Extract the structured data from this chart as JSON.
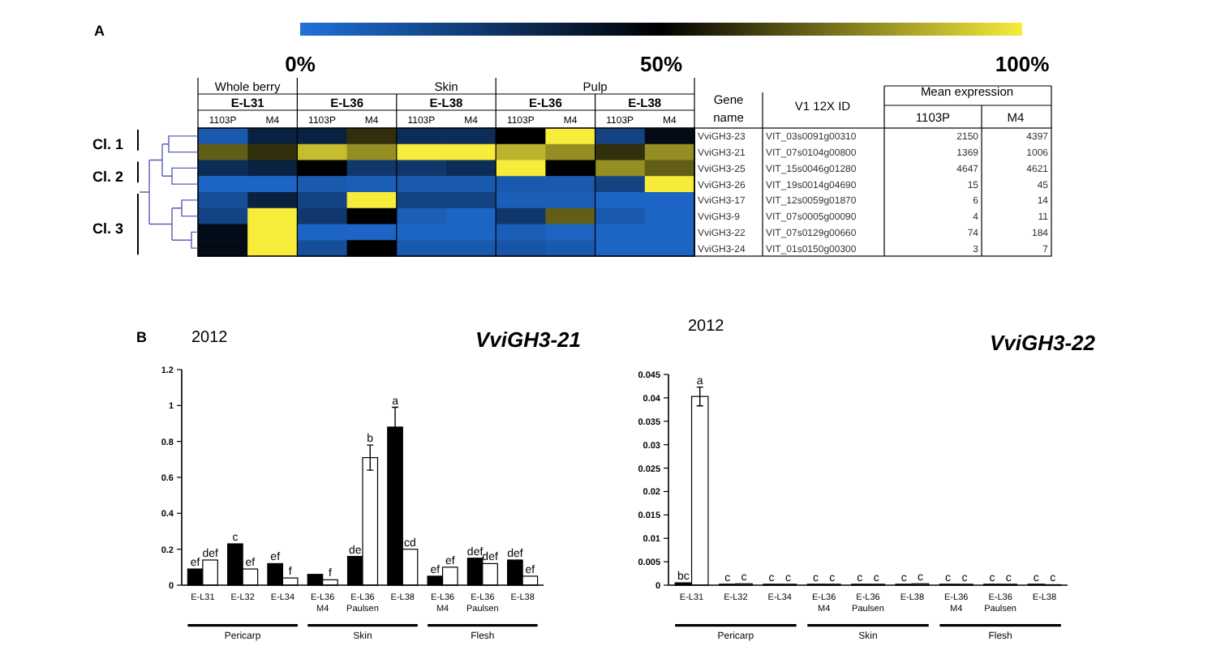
{
  "chart_data": [
    {
      "type": "heatmap",
      "categories": [
        "1103P",
        "M4",
        "1103P",
        "M4",
        "1103P",
        "M4",
        "1103P",
        "M4",
        "1103P",
        "M4"
      ],
      "y_categories": [
        null,
        null,
        null,
        null,
        null,
        null,
        null,
        null
      ],
      "y2_categories": [
        "VviGH3-23",
        "VviGH3-21",
        "VviGH3-25",
        "VviGH3-26",
        "VviGH3-17",
        "VviGH3-9",
        "VviGH3-22",
        "VviGH3-24"
      ],
      "cells": [
        [
          10,
          35,
          35,
          60,
          30,
          30,
          50,
          100,
          20,
          45
        ],
        [
          70,
          60,
          90,
          80,
          100,
          100,
          88,
          80,
          60,
          80
        ],
        [
          30,
          35,
          50,
          25,
          25,
          30,
          100,
          50,
          80,
          70
        ],
        [
          5,
          5,
          10,
          8,
          10,
          10,
          10,
          10,
          20,
          100
        ],
        [
          15,
          35,
          20,
          100,
          20,
          20,
          8,
          8,
          5,
          5
        ],
        [
          20,
          100,
          25,
          50,
          8,
          5,
          25,
          70,
          10,
          5
        ],
        [
          45,
          100,
          5,
          5,
          5,
          5,
          8,
          5,
          5,
          5
        ],
        [
          45,
          100,
          15,
          50,
          10,
          10,
          12,
          10,
          5,
          5
        ]
      ],
      "clim": [
        0,
        100
      ],
      "cticks": [
        {
          "value": 0,
          "label": "0%"
        },
        {
          "value": 50,
          "label": "50%"
        },
        {
          "value": 100,
          "label": "100%"
        }
      ],
      "annotations": [
        "A",
        "Whole berry",
        "Skin",
        "Pulp",
        "E-L31",
        "E-L36",
        "E-L38",
        "E-L36",
        "E-L38",
        "Cl. 1",
        "Cl. 2",
        "Cl. 3"
      ]
    },
    {
      "type": "other",
      "annotations": [
        "Gene name",
        "V1 12X ID",
        "Mean expression",
        "1103P",
        "M4"
      ],
      "cell_labels": [
        [
          "VIT_03s0091g00310",
          "2150",
          "4397"
        ],
        [
          "VIT_07s0104g00800",
          "1369",
          "1006"
        ],
        [
          "VIT_15s0046g01280",
          "4647",
          "4621"
        ],
        [
          "VIT_19s0014g04690",
          "15",
          "45"
        ],
        [
          "VIT_12s0059g01870",
          "6",
          "14"
        ],
        [
          "VIT_07s0005g00090",
          "4",
          "11"
        ],
        [
          "VIT_07s0129g00660",
          "74",
          "184"
        ],
        [
          "VIT_01s0150g00300",
          "3",
          "7"
        ]
      ]
    },
    {
      "type": "bar",
      "title": "VviGH3-21",
      "subtitle": "2012",
      "categories": [
        "E-L31",
        "E-L32",
        "E-L34",
        "E-L36\nM4",
        "E-L36\nPaulsen",
        "E-L38",
        "E-L36\nM4",
        "E-L36\nPaulsen",
        "E-L38"
      ],
      "series": [
        {
          "color": "#000000",
          "values": [
            0.09,
            0.23,
            0.12,
            0.06,
            0.16,
            0.88,
            0.05,
            0.15,
            0.14
          ],
          "errors": [
            null,
            null,
            null,
            null,
            null,
            0.11,
            null,
            null,
            null
          ],
          "value_labels": [
            "ef",
            "c",
            "ef",
            null,
            "de",
            "a",
            "ef",
            "def",
            "def"
          ]
        },
        {
          "color": "#ffffff",
          "values": [
            0.14,
            0.09,
            0.04,
            0.03,
            0.71,
            0.2,
            0.1,
            0.12,
            0.05
          ],
          "errors": [
            null,
            null,
            null,
            null,
            0.07,
            null,
            null,
            null,
            null
          ],
          "value_labels": [
            "def",
            "ef",
            "f",
            "f",
            "b",
            "cd",
            "ef",
            "def",
            "ef"
          ]
        }
      ],
      "ylim": [
        0,
        1.2
      ],
      "yticks": [
        0,
        0.2,
        0.4,
        0.6,
        0.8,
        1,
        1.2
      ],
      "annotations": [
        "B",
        "Pericarp",
        "Skin",
        "Flesh"
      ]
    },
    {
      "type": "bar",
      "title": "VviGH3-22",
      "subtitle": "2012",
      "categories": [
        "E-L31",
        "E-L32",
        "E-L34",
        "E-L36\nM4",
        "E-L36\nPaulsen",
        "E-L38",
        "E-L36\nM4",
        "E-L36\nPaulsen",
        "E-L38"
      ],
      "series": [
        {
          "color": "#000000",
          "values": [
            0.0005,
            0.0002,
            0.0002,
            0.0002,
            0.0002,
            0.0002,
            0.0002,
            0.0002,
            0.0002
          ],
          "value_labels": [
            "bc",
            "c",
            "c",
            "c",
            "c",
            "c",
            "c",
            "c",
            "c"
          ]
        },
        {
          "color": "#ffffff",
          "values": [
            0.0403,
            0.0003,
            0.0002,
            0.0002,
            0.0002,
            0.0003,
            0.0002,
            0.0002,
            0.0001
          ],
          "errors": [
            0.002,
            null,
            null,
            null,
            null,
            null,
            null,
            null,
            null
          ],
          "value_labels": [
            "a",
            "c",
            "c",
            "c",
            "c",
            "c",
            "c",
            "c",
            "c"
          ]
        }
      ],
      "ylim": [
        0,
        0.045
      ],
      "yticks": [
        0,
        0.005,
        0.01,
        0.015,
        0.02,
        0.025,
        0.03,
        0.035,
        0.04,
        0.045
      ],
      "annotations": [
        "Pericarp",
        "Skin",
        "Flesh"
      ]
    }
  ]
}
